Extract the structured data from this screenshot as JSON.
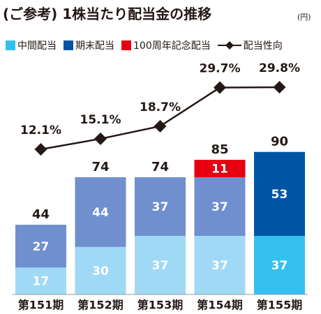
{
  "title": "(ご参考) 1株当たり配当金の推移",
  "unit": "(円)",
  "colors": {
    "interim": "#9fd9f6",
    "year_end": "#6f8fce",
    "commemorative": "#e60012",
    "interim_155": "#33c0ef",
    "year_end_155": "#0054a6",
    "line": "#231815",
    "text": "#231815",
    "label_light": "#ffffff"
  },
  "legend": [
    {
      "label": "中間配当",
      "color": "#33c0ef",
      "kind": "box"
    },
    {
      "label": "期末配当",
      "color": "#0054a6",
      "kind": "box"
    },
    {
      "label": "100周年記念配当",
      "color": "#e60012",
      "kind": "box"
    },
    {
      "label": "配当性向",
      "color": "#231815",
      "kind": "line-diamond"
    }
  ],
  "chart_data": {
    "type": "bar",
    "stacked": true,
    "categories": [
      "第151期",
      "第152期",
      "第153期",
      "第154期",
      "第155期"
    ],
    "series": [
      {
        "name": "中間配当",
        "values": [
          17,
          30,
          37,
          37,
          37
        ]
      },
      {
        "name": "期末配当",
        "values": [
          27,
          44,
          37,
          37,
          53
        ]
      },
      {
        "name": "100周年記念配当",
        "values": [
          0,
          0,
          0,
          11,
          0
        ]
      }
    ],
    "totals": [
      44,
      74,
      74,
      85,
      90
    ],
    "line_series": {
      "name": "配当性向",
      "values": [
        12.1,
        15.1,
        18.7,
        29.7,
        29.8
      ],
      "labels": [
        "12.1%",
        "15.1%",
        "18.7%",
        "29.7%",
        "29.8%"
      ]
    },
    "ylim": [
      0,
      90
    ]
  }
}
